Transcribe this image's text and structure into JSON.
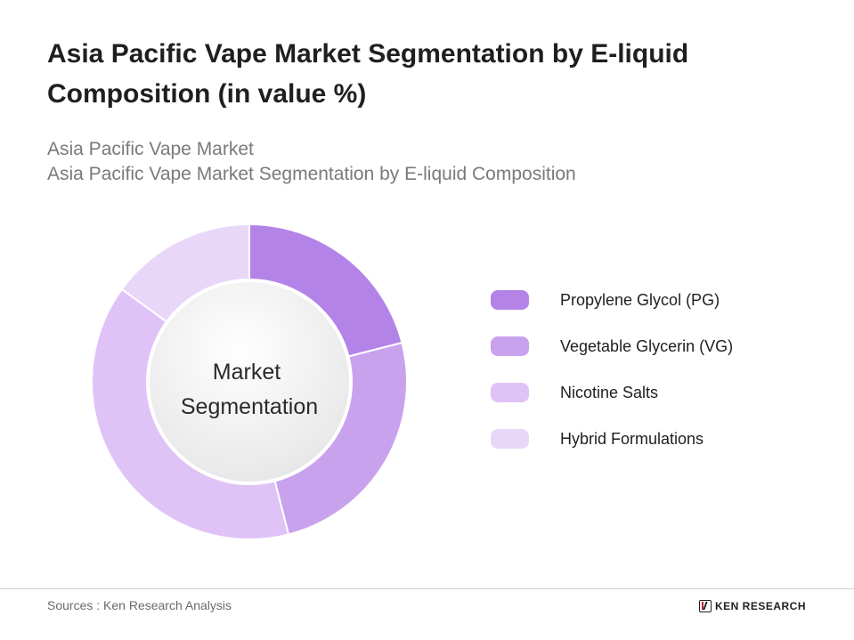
{
  "header": {
    "title": "Asia Pacific Vape Market Segmentation by E-liquid Composition (in value %)",
    "breadcrumb_line1": "Asia Pacific Vape Market",
    "breadcrumb_line2": "Asia Pacific Vape Market Segmentation by E-liquid Composition"
  },
  "chart_data": {
    "type": "pie",
    "donut": true,
    "center_label_line1": "Market",
    "center_label_line2": "Segmentation",
    "categories": [
      "Propylene Glycol (PG)",
      "Vegetable Glycerin (VG)",
      "Nicotine Salts",
      "Hybrid Formulations"
    ],
    "values": [
      21,
      25,
      39,
      15
    ],
    "colors": [
      "#b383e8",
      "#c9a2ee",
      "#dfc3f7",
      "#e9d7f9"
    ],
    "legend_position": "right",
    "start_angle_deg": 0,
    "direction": "clockwise"
  },
  "footer": {
    "sources": "Sources : Ken Research Analysis",
    "brand": "KEN RESEARCH"
  }
}
